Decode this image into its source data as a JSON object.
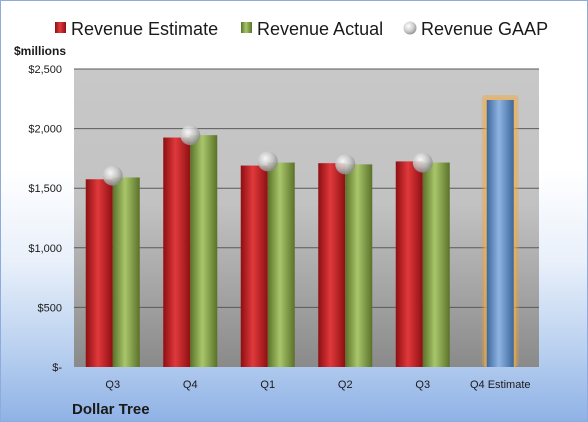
{
  "chart_data": {
    "type": "bar",
    "unit_label": "$millions",
    "company": "Dollar Tree",
    "categories": [
      "Q3",
      "Q4",
      "Q1",
      "Q2",
      "Q3",
      "Q4 Estimate"
    ],
    "series": [
      {
        "name": "Revenue Estimate",
        "kind": "bar",
        "color": "#c0181c",
        "values": [
          1575,
          1925,
          1690,
          1710,
          1725,
          null
        ]
      },
      {
        "name": "Revenue Actual",
        "kind": "bar",
        "color": "#77933c",
        "values": [
          1590,
          1945,
          1715,
          1700,
          1715,
          null
        ]
      },
      {
        "name": "Revenue GAAP",
        "kind": "marker",
        "color": "#a6a6a6",
        "values": [
          1605,
          1945,
          1725,
          1700,
          1715,
          null
        ]
      },
      {
        "name": "Q4 Estimate",
        "kind": "bar",
        "color": "#4f81bd",
        "values": [
          null,
          null,
          null,
          null,
          null,
          2240
        ]
      }
    ],
    "ylim": [
      0,
      2500
    ],
    "yticks": [
      {
        "value": 0,
        "label": "$-"
      },
      {
        "value": 500,
        "label": "$500"
      },
      {
        "value": 1000,
        "label": "$1,000"
      },
      {
        "value": 1500,
        "label": "$1,500"
      },
      {
        "value": 2000,
        "label": "$2,000"
      },
      {
        "value": 2500,
        "label": "$2,500"
      }
    ],
    "legend": [
      "Revenue Estimate",
      "Revenue Actual",
      "Revenue GAAP"
    ],
    "legend_position": "top",
    "grid": true
  }
}
